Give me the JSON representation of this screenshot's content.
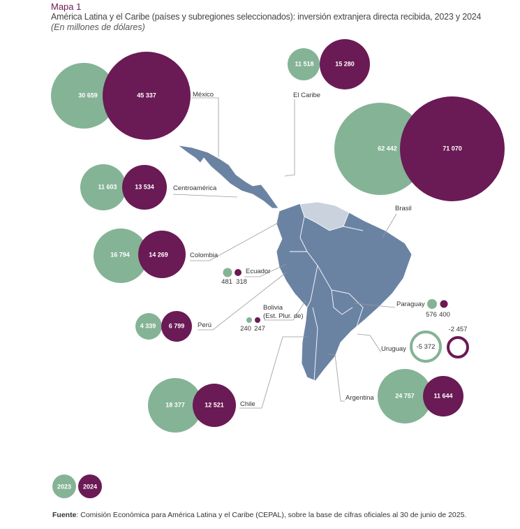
{
  "header": {
    "kicker": "Mapa 1",
    "title": "América Latina y el Caribe (países y subregiones seleccionados): inversión extranjera directa recibida, 2023 y 2024",
    "subtitle": "(En millones de dólares)"
  },
  "colors": {
    "y2023": "#85b396",
    "y2024": "#6a1a55",
    "map": "#6b83a3",
    "map_light": "#c9d2dd"
  },
  "chart_data": {
    "type": "bubble-map",
    "unit": "millones de dólares",
    "series": [
      "2023",
      "2024"
    ],
    "regions": [
      {
        "name": "México",
        "v2023": "30 659",
        "v2024": "45 337"
      },
      {
        "name": "El Caribe",
        "v2023": "11 518",
        "v2024": "15 280"
      },
      {
        "name": "Brasil",
        "v2023": "62 442",
        "v2024": "71 070"
      },
      {
        "name": "Centroamérica",
        "v2023": "11 603",
        "v2024": "13 534"
      },
      {
        "name": "Colombia",
        "v2023": "16 794",
        "v2024": "14 269"
      },
      {
        "name": "Ecuador",
        "v2023": "481",
        "v2024": "318"
      },
      {
        "name": "Perú",
        "v2023": "4 339",
        "v2024": "6 799"
      },
      {
        "name": "Bolivia",
        "name2": "(Est. Plur. de)",
        "v2023": "240",
        "v2024": "247"
      },
      {
        "name": "Paraguay",
        "v2023": "576",
        "v2024": "400"
      },
      {
        "name": "Uruguay",
        "v2023": "-5 372",
        "v2024": "-2 457"
      },
      {
        "name": "Chile",
        "v2023": "18 377",
        "v2024": "12 521"
      },
      {
        "name": "Argentina",
        "v2023": "24 757",
        "v2024": "11 644"
      }
    ]
  },
  "legend": {
    "y2023": "2023",
    "y2024": "2024"
  },
  "source": {
    "label": "Fuente",
    "text": ":  Comisión Económica para América Latina y el Caribe (CEPAL), sobre la base de cifras oficiales al 30 de junio de 2025."
  }
}
